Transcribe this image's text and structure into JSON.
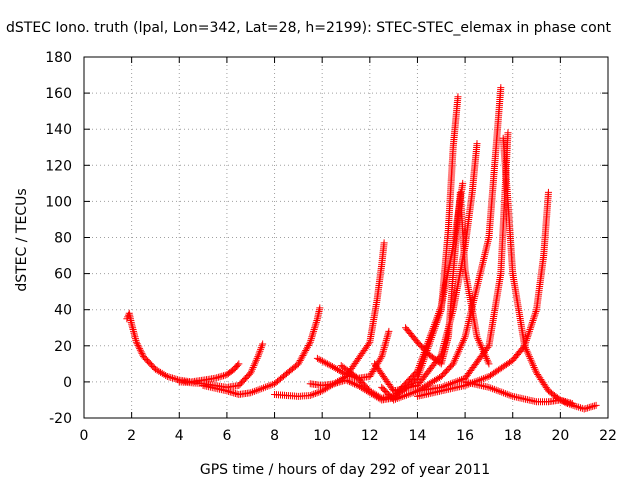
{
  "chart_data": {
    "type": "scatter",
    "title": "dSTEC Iono. truth (lpal, Lon=342, Lat=28, h=2199): STEC-STEC_elemax in phase cont",
    "xlabel": "GPS time / hours of day 292 of year 2011",
    "ylabel": "dSTEC  / TECUs",
    "xlim": [
      0,
      22
    ],
    "ylim": [
      -20,
      180
    ],
    "xticks": [
      0,
      2,
      4,
      6,
      8,
      10,
      12,
      14,
      16,
      18,
      20,
      22
    ],
    "yticks": [
      -20,
      0,
      20,
      40,
      60,
      80,
      100,
      120,
      140,
      160,
      180
    ],
    "grid": true,
    "marker": "+",
    "color": "#ff0000",
    "series": [
      {
        "x": [
          1.8,
          1.9,
          2.0,
          2.2,
          2.5,
          3.0,
          3.5,
          4.0,
          4.5,
          5.0,
          5.5,
          6.0,
          6.3,
          6.5
        ],
        "y": [
          35,
          38,
          32,
          22,
          14,
          7,
          3,
          1,
          0,
          1,
          2,
          4,
          7,
          10
        ]
      },
      {
        "x": [
          4.0,
          5.0,
          6.0,
          6.5,
          7.0,
          7.3,
          7.5
        ],
        "y": [
          0,
          -1,
          -3,
          -2,
          5,
          14,
          21
        ]
      },
      {
        "x": [
          5.0,
          6.0,
          6.5,
          7.0,
          8.0,
          9.0,
          9.5,
          9.8,
          9.9
        ],
        "y": [
          -2,
          -5,
          -7,
          -6,
          -1,
          10,
          22,
          35,
          41
        ]
      },
      {
        "x": [
          8.0,
          8.5,
          9.0,
          9.5,
          10.0,
          11.0,
          12.0,
          12.3,
          12.5,
          12.6
        ],
        "y": [
          -7,
          -7.5,
          -8,
          -7.5,
          -5,
          3,
          22,
          45,
          65,
          77
        ]
      },
      {
        "x": [
          9.8,
          10.5,
          11.0,
          11.5,
          12.0,
          12.5,
          12.8
        ],
        "y": [
          13,
          8,
          4,
          2,
          3,
          14,
          28
        ]
      },
      {
        "x": [
          9.5,
          10.0,
          10.5,
          11.0,
          11.5,
          12.0,
          12.5,
          13.0,
          14.0,
          15.0,
          15.3,
          15.5,
          15.7
        ],
        "y": [
          -1,
          -2,
          -1,
          1,
          -2,
          -6,
          -10,
          -9,
          2,
          40,
          85,
          130,
          158
        ]
      },
      {
        "x": [
          10.8,
          11.5,
          12.0,
          12.5,
          13.0,
          14.0,
          15.0,
          15.5,
          15.9
        ],
        "y": [
          9,
          2,
          -5,
          -9,
          -8,
          6,
          42,
          75,
          110
        ]
      },
      {
        "x": [
          12.2,
          13.0,
          14.0,
          15.0,
          15.5,
          16.0,
          16.3,
          16.5
        ],
        "y": [
          10,
          -5,
          -2,
          15,
          40,
          75,
          105,
          132
        ]
      },
      {
        "x": [
          12.5,
          13.0,
          14.0,
          15.0,
          15.5,
          16.0,
          17.0,
          17.5
        ],
        "y": [
          -3,
          -10,
          -5,
          3,
          10,
          25,
          80,
          163
        ]
      },
      {
        "x": [
          13.5,
          14.0,
          14.5,
          15.0,
          15.3,
          15.5,
          15.8,
          16.0,
          16.5,
          17.0
        ],
        "y": [
          30,
          22,
          15,
          10,
          25,
          60,
          105,
          62,
          25,
          10
        ]
      },
      {
        "x": [
          14.0,
          15.0,
          16.0,
          17.0,
          17.5,
          17.8
        ],
        "y": [
          -5,
          -3,
          2,
          20,
          60,
          138
        ]
      },
      {
        "x": [
          17.6,
          17.8,
          18.0,
          18.5,
          19.0,
          19.5,
          20.0,
          20.3,
          21.0,
          21.5
        ],
        "y": [
          135,
          100,
          60,
          20,
          5,
          -5,
          -10,
          -12,
          -15,
          -13
        ]
      },
      {
        "x": [
          14.0,
          15.0,
          16.0,
          17.0,
          18.0,
          18.5,
          19.0,
          19.3,
          19.5
        ],
        "y": [
          -8,
          -5,
          -2,
          3,
          12,
          20,
          40,
          70,
          105
        ]
      },
      {
        "x": [
          16.0,
          17.0,
          18.0,
          19.0,
          19.5,
          20.0,
          20.5
        ],
        "y": [
          0,
          -3,
          -8,
          -11,
          -11,
          -10,
          -12
        ]
      }
    ]
  }
}
